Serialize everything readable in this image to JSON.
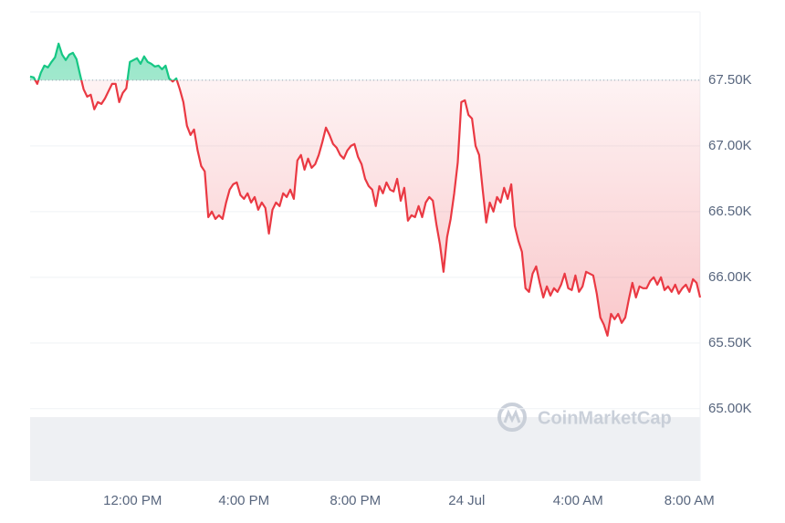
{
  "chart_data": {
    "type": "line",
    "watermark": "CoinMarketCap",
    "up_color": "#16c784",
    "down_color": "#ea3943",
    "baseline": 67500,
    "grid": true,
    "xlim": [
      -3.68,
      20.384
    ],
    "ylim": [
      64450,
      68020
    ],
    "xticks": [
      {
        "value": 0,
        "label": "12:00 PM"
      },
      {
        "value": 4,
        "label": "4:00 PM"
      },
      {
        "value": 8,
        "label": "8:00 PM"
      },
      {
        "value": 12,
        "label": "24 Jul"
      },
      {
        "value": 16,
        "label": "4:00 AM"
      },
      {
        "value": 20,
        "label": "8:00 AM"
      }
    ],
    "yticks": [
      {
        "value": 65000,
        "label": "65.00K"
      },
      {
        "value": 65500,
        "label": "65.50K"
      },
      {
        "value": 66000,
        "label": "66.00K"
      },
      {
        "value": 66500,
        "label": "66.50K"
      },
      {
        "value": 67000,
        "label": "67.00K"
      },
      {
        "value": 67500,
        "label": "67.50K"
      }
    ],
    "x": [
      -3.68,
      -3.552,
      -3.424,
      -3.296,
      -3.168,
      -3.04,
      -2.912,
      -2.784,
      -2.656,
      -2.528,
      -2.4,
      -2.272,
      -2.144,
      -2.016,
      -1.888,
      -1.76,
      -1.632,
      -1.504,
      -1.376,
      -1.248,
      -1.12,
      -0.992,
      -0.864,
      -0.736,
      -0.608,
      -0.48,
      -0.352,
      -0.224,
      -0.096,
      0.032,
      0.16,
      0.288,
      0.416,
      0.544,
      0.672,
      0.8,
      0.928,
      1.056,
      1.184,
      1.312,
      1.44,
      1.568,
      1.696,
      1.824,
      1.952,
      2.08,
      2.208,
      2.336,
      2.464,
      2.592,
      2.72,
      2.848,
      2.976,
      3.104,
      3.232,
      3.36,
      3.488,
      3.616,
      3.744,
      3.872,
      4,
      4.128,
      4.256,
      4.384,
      4.512,
      4.64,
      4.768,
      4.896,
      5.024,
      5.152,
      5.28,
      5.408,
      5.536,
      5.664,
      5.792,
      5.92,
      6.048,
      6.176,
      6.304,
      6.432,
      6.56,
      6.688,
      6.816,
      6.944,
      7.072,
      7.2,
      7.328,
      7.456,
      7.584,
      7.712,
      7.84,
      7.968,
      8.096,
      8.224,
      8.352,
      8.48,
      8.608,
      8.736,
      8.864,
      8.992,
      9.12,
      9.248,
      9.376,
      9.504,
      9.632,
      9.76,
      9.888,
      10.016,
      10.144,
      10.272,
      10.4,
      10.528,
      10.656,
      10.784,
      10.912,
      11.04,
      11.168,
      11.296,
      11.424,
      11.552,
      11.68,
      11.808,
      11.936,
      12.064,
      12.192,
      12.32,
      12.448,
      12.576,
      12.704,
      12.832,
      12.96,
      13.088,
      13.216,
      13.344,
      13.472,
      13.6,
      13.728,
      13.856,
      13.984,
      14.112,
      14.24,
      14.368,
      14.496,
      14.624,
      14.752,
      14.88,
      15.008,
      15.136,
      15.264,
      15.392,
      15.52,
      15.648,
      15.776,
      15.904,
      16.032,
      16.16,
      16.288,
      16.416,
      16.544,
      16.672,
      16.8,
      16.928,
      17.056,
      17.184,
      17.312,
      17.44,
      17.568,
      17.696,
      17.824,
      17.952,
      18.08,
      18.208,
      18.336,
      18.464,
      18.592,
      18.72,
      18.848,
      18.976,
      19.104,
      19.232,
      19.36,
      19.488,
      19.616,
      19.744,
      19.872,
      20,
      20.128,
      20.256,
      20.384
    ],
    "values": [
      67528,
      67521,
      67472,
      67556,
      67611,
      67597,
      67639,
      67674,
      67778,
      67694,
      67653,
      67694,
      67708,
      67660,
      67542,
      67431,
      67375,
      67389,
      67278,
      67333,
      67319,
      67361,
      67417,
      67472,
      67472,
      67333,
      67403,
      67438,
      67639,
      67653,
      67667,
      67625,
      67681,
      67639,
      67625,
      67604,
      67611,
      67583,
      67611,
      67514,
      67490,
      67514,
      67431,
      67333,
      67153,
      67083,
      67125,
      66965,
      66847,
      66806,
      66458,
      66500,
      66444,
      66472,
      66444,
      66569,
      66667,
      66708,
      66722,
      66625,
      66597,
      66639,
      66569,
      66611,
      66514,
      66569,
      66528,
      66333,
      66514,
      66569,
      66542,
      66639,
      66611,
      66667,
      66597,
      66889,
      66931,
      66819,
      66903,
      66833,
      66861,
      66931,
      67028,
      67139,
      67083,
      67014,
      66986,
      66931,
      66903,
      66965,
      67000,
      67014,
      66917,
      66861,
      66750,
      66694,
      66667,
      66542,
      66694,
      66639,
      66722,
      66667,
      66653,
      66750,
      66583,
      66681,
      66431,
      66472,
      66458,
      66542,
      66458,
      66569,
      66611,
      66583,
      66403,
      66250,
      66042,
      66306,
      66444,
      66639,
      66875,
      67333,
      67347,
      67236,
      67208,
      67000,
      66931,
      66667,
      66417,
      66569,
      66500,
      66611,
      66569,
      66681,
      66597,
      66708,
      66389,
      66278,
      66194,
      65917,
      65889,
      66028,
      66083,
      65958,
      65847,
      65931,
      65861,
      65917,
      65889,
      65944,
      66028,
      65917,
      65903,
      66014,
      65889,
      65931,
      66042,
      66028,
      66014,
      65875,
      65694,
      65639,
      65556,
      65722,
      65681,
      65722,
      65653,
      65694,
      65833,
      65958,
      65847,
      65931,
      65917,
      65917,
      65972,
      66000,
      65944,
      66000,
      65903,
      65931,
      65889,
      65944,
      65875,
      65917,
      65944,
      65889,
      65986,
      65958,
      65847
    ]
  }
}
